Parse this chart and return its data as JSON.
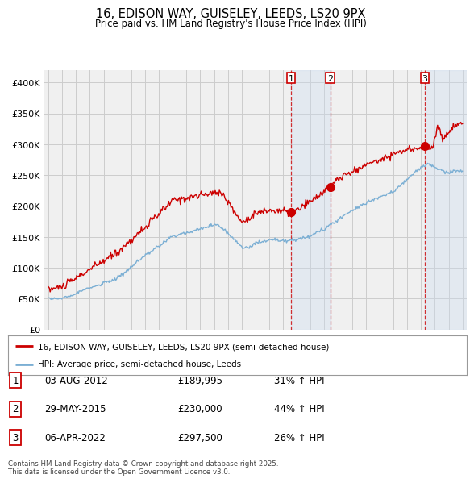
{
  "title": "16, EDISON WAY, GUISELEY, LEEDS, LS20 9PX",
  "subtitle": "Price paid vs. HM Land Registry's House Price Index (HPI)",
  "x_start_year": 1995,
  "x_end_year": 2025,
  "ylim": [
    0,
    420000
  ],
  "yticks": [
    0,
    50000,
    100000,
    150000,
    200000,
    250000,
    300000,
    350000,
    400000
  ],
  "ytick_labels": [
    "£0",
    "£50K",
    "£100K",
    "£150K",
    "£200K",
    "£250K",
    "£300K",
    "£350K",
    "£400K"
  ],
  "red_line_color": "#cc0000",
  "blue_line_color": "#7bafd4",
  "grid_color": "#cccccc",
  "background_color": "#ffffff",
  "plot_bg_color": "#f0f0f0",
  "shade_color": "#ccddf0",
  "sale1_price": 189995,
  "sale1_hpi": "31% ↑ HPI",
  "sale1_year": 2012.58,
  "sale1_date": "03-AUG-2012",
  "sale2_price": 230000,
  "sale2_hpi": "44% ↑ HPI",
  "sale2_year": 2015.41,
  "sale2_date": "29-MAY-2015",
  "sale3_price": 297500,
  "sale3_hpi": "26% ↑ HPI",
  "sale3_year": 2022.27,
  "sale3_date": "06-APR-2022",
  "legend_label_red": "16, EDISON WAY, GUISELEY, LEEDS, LS20 9PX (semi-detached house)",
  "legend_label_blue": "HPI: Average price, semi-detached house, Leeds",
  "footer": "Contains HM Land Registry data © Crown copyright and database right 2025.\nThis data is licensed under the Open Government Licence v3.0."
}
